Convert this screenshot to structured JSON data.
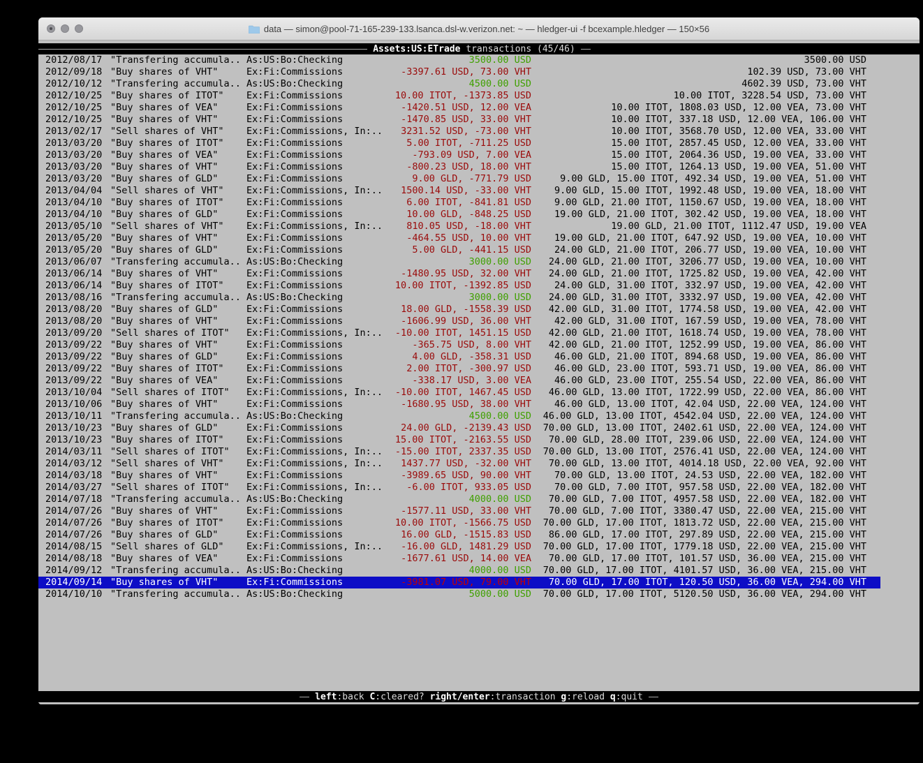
{
  "window": {
    "title": "data — simon@pool-71-165-239-133.lsanca.dsl-w.verizon.net: ~ — hledger-ui -f bcexample.hledger — 150×56",
    "buttons": [
      "close",
      "minimize",
      "zoom"
    ]
  },
  "colors": {
    "terminal_bg": "#c0c0c0",
    "bar_bg": "#000000",
    "selection_bg": "#0d0dc6",
    "negative_amount": "#9a0b0b",
    "positive_amount": "#3fa000",
    "selected_negative_amount": "#c40000"
  },
  "screen": {
    "account": "Assets:US:ETrade",
    "rest": "transactions (45/46)"
  },
  "key_bar": {
    "items": [
      {
        "key": "left",
        "desc": ":back"
      },
      {
        "key": "C",
        "desc": ":cleared?"
      },
      {
        "key": "right/enter",
        "desc": ":transaction"
      },
      {
        "key": "g",
        "desc": ":reload"
      },
      {
        "key": "q",
        "desc": ":quit"
      }
    ]
  },
  "selected_index": 44,
  "transactions": [
    {
      "date": "2012/08/17",
      "desc": "\"Transfering accumula..",
      "acct": "As:US:Bo:Checking",
      "chg": "3500.00 USD",
      "sign": "pos",
      "bal": "3500.00 USD"
    },
    {
      "date": "2012/09/18",
      "desc": "\"Buy shares of VHT\"",
      "acct": "Ex:Fi:Commissions",
      "chg": "-3397.61 USD, 73.00 VHT",
      "sign": "neg",
      "bal": "102.39 USD, 73.00 VHT"
    },
    {
      "date": "2012/10/12",
      "desc": "\"Transfering accumula..",
      "acct": "As:US:Bo:Checking",
      "chg": "4500.00 USD",
      "sign": "pos",
      "bal": "4602.39 USD, 73.00 VHT"
    },
    {
      "date": "2012/10/25",
      "desc": "\"Buy shares of ITOT\"",
      "acct": "Ex:Fi:Commissions",
      "chg": "10.00 ITOT, -1373.85 USD",
      "sign": "neg",
      "bal": "10.00 ITOT, 3228.54 USD, 73.00 VHT"
    },
    {
      "date": "2012/10/25",
      "desc": "\"Buy shares of VEA\"",
      "acct": "Ex:Fi:Commissions",
      "chg": "-1420.51 USD, 12.00 VEA",
      "sign": "neg",
      "bal": "10.00 ITOT, 1808.03 USD, 12.00 VEA, 73.00 VHT"
    },
    {
      "date": "2012/10/25",
      "desc": "\"Buy shares of VHT\"",
      "acct": "Ex:Fi:Commissions",
      "chg": "-1470.85 USD, 33.00 VHT",
      "sign": "neg",
      "bal": "10.00 ITOT, 337.18 USD, 12.00 VEA, 106.00 VHT"
    },
    {
      "date": "2013/02/17",
      "desc": "\"Sell shares of VHT\"",
      "acct": "Ex:Fi:Commissions, In:..",
      "chg": "3231.52 USD, -73.00 VHT",
      "sign": "neg",
      "bal": "10.00 ITOT, 3568.70 USD, 12.00 VEA, 33.00 VHT"
    },
    {
      "date": "2013/03/20",
      "desc": "\"Buy shares of ITOT\"",
      "acct": "Ex:Fi:Commissions",
      "chg": "5.00 ITOT, -711.25 USD",
      "sign": "neg",
      "bal": "15.00 ITOT, 2857.45 USD, 12.00 VEA, 33.00 VHT"
    },
    {
      "date": "2013/03/20",
      "desc": "\"Buy shares of VEA\"",
      "acct": "Ex:Fi:Commissions",
      "chg": "-793.09 USD, 7.00 VEA",
      "sign": "neg",
      "bal": "15.00 ITOT, 2064.36 USD, 19.00 VEA, 33.00 VHT"
    },
    {
      "date": "2013/03/20",
      "desc": "\"Buy shares of VHT\"",
      "acct": "Ex:Fi:Commissions",
      "chg": "-800.23 USD, 18.00 VHT",
      "sign": "neg",
      "bal": "15.00 ITOT, 1264.13 USD, 19.00 VEA, 51.00 VHT"
    },
    {
      "date": "2013/03/20",
      "desc": "\"Buy shares of GLD\"",
      "acct": "Ex:Fi:Commissions",
      "chg": "9.00 GLD, -771.79 USD",
      "sign": "neg",
      "bal": "9.00 GLD, 15.00 ITOT, 492.34 USD, 19.00 VEA, 51.00 VHT"
    },
    {
      "date": "2013/04/04",
      "desc": "\"Sell shares of VHT\"",
      "acct": "Ex:Fi:Commissions, In:..",
      "chg": "1500.14 USD, -33.00 VHT",
      "sign": "neg",
      "bal": "9.00 GLD, 15.00 ITOT, 1992.48 USD, 19.00 VEA, 18.00 VHT"
    },
    {
      "date": "2013/04/10",
      "desc": "\"Buy shares of ITOT\"",
      "acct": "Ex:Fi:Commissions",
      "chg": "6.00 ITOT, -841.81 USD",
      "sign": "neg",
      "bal": "9.00 GLD, 21.00 ITOT, 1150.67 USD, 19.00 VEA, 18.00 VHT"
    },
    {
      "date": "2013/04/10",
      "desc": "\"Buy shares of GLD\"",
      "acct": "Ex:Fi:Commissions",
      "chg": "10.00 GLD, -848.25 USD",
      "sign": "neg",
      "bal": "19.00 GLD, 21.00 ITOT, 302.42 USD, 19.00 VEA, 18.00 VHT"
    },
    {
      "date": "2013/05/10",
      "desc": "\"Sell shares of VHT\"",
      "acct": "Ex:Fi:Commissions, In:..",
      "chg": "810.05 USD, -18.00 VHT",
      "sign": "neg",
      "bal": "19.00 GLD, 21.00 ITOT, 1112.47 USD, 19.00 VEA"
    },
    {
      "date": "2013/05/20",
      "desc": "\"Buy shares of VHT\"",
      "acct": "Ex:Fi:Commissions",
      "chg": "-464.55 USD, 10.00 VHT",
      "sign": "neg",
      "bal": "19.00 GLD, 21.00 ITOT, 647.92 USD, 19.00 VEA, 10.00 VHT"
    },
    {
      "date": "2013/05/20",
      "desc": "\"Buy shares of GLD\"",
      "acct": "Ex:Fi:Commissions",
      "chg": "5.00 GLD, -441.15 USD",
      "sign": "neg",
      "bal": "24.00 GLD, 21.00 ITOT, 206.77 USD, 19.00 VEA, 10.00 VHT"
    },
    {
      "date": "2013/06/07",
      "desc": "\"Transfering accumula..",
      "acct": "As:US:Bo:Checking",
      "chg": "3000.00 USD",
      "sign": "pos",
      "bal": "24.00 GLD, 21.00 ITOT, 3206.77 USD, 19.00 VEA, 10.00 VHT"
    },
    {
      "date": "2013/06/14",
      "desc": "\"Buy shares of VHT\"",
      "acct": "Ex:Fi:Commissions",
      "chg": "-1480.95 USD, 32.00 VHT",
      "sign": "neg",
      "bal": "24.00 GLD, 21.00 ITOT, 1725.82 USD, 19.00 VEA, 42.00 VHT"
    },
    {
      "date": "2013/06/14",
      "desc": "\"Buy shares of ITOT\"",
      "acct": "Ex:Fi:Commissions",
      "chg": "10.00 ITOT, -1392.85 USD",
      "sign": "neg",
      "bal": "24.00 GLD, 31.00 ITOT, 332.97 USD, 19.00 VEA, 42.00 VHT"
    },
    {
      "date": "2013/08/16",
      "desc": "\"Transfering accumula..",
      "acct": "As:US:Bo:Checking",
      "chg": "3000.00 USD",
      "sign": "pos",
      "bal": "24.00 GLD, 31.00 ITOT, 3332.97 USD, 19.00 VEA, 42.00 VHT"
    },
    {
      "date": "2013/08/20",
      "desc": "\"Buy shares of GLD\"",
      "acct": "Ex:Fi:Commissions",
      "chg": "18.00 GLD, -1558.39 USD",
      "sign": "neg",
      "bal": "42.00 GLD, 31.00 ITOT, 1774.58 USD, 19.00 VEA, 42.00 VHT"
    },
    {
      "date": "2013/08/20",
      "desc": "\"Buy shares of VHT\"",
      "acct": "Ex:Fi:Commissions",
      "chg": "-1606.99 USD, 36.00 VHT",
      "sign": "neg",
      "bal": "42.00 GLD, 31.00 ITOT, 167.59 USD, 19.00 VEA, 78.00 VHT"
    },
    {
      "date": "2013/09/20",
      "desc": "\"Sell shares of ITOT\"",
      "acct": "Ex:Fi:Commissions, In:..",
      "chg": "-10.00 ITOT, 1451.15 USD",
      "sign": "neg",
      "bal": "42.00 GLD, 21.00 ITOT, 1618.74 USD, 19.00 VEA, 78.00 VHT"
    },
    {
      "date": "2013/09/22",
      "desc": "\"Buy shares of VHT\"",
      "acct": "Ex:Fi:Commissions",
      "chg": "-365.75 USD, 8.00 VHT",
      "sign": "neg",
      "bal": "42.00 GLD, 21.00 ITOT, 1252.99 USD, 19.00 VEA, 86.00 VHT"
    },
    {
      "date": "2013/09/22",
      "desc": "\"Buy shares of GLD\"",
      "acct": "Ex:Fi:Commissions",
      "chg": "4.00 GLD, -358.31 USD",
      "sign": "neg",
      "bal": "46.00 GLD, 21.00 ITOT, 894.68 USD, 19.00 VEA, 86.00 VHT"
    },
    {
      "date": "2013/09/22",
      "desc": "\"Buy shares of ITOT\"",
      "acct": "Ex:Fi:Commissions",
      "chg": "2.00 ITOT, -300.97 USD",
      "sign": "neg",
      "bal": "46.00 GLD, 23.00 ITOT, 593.71 USD, 19.00 VEA, 86.00 VHT"
    },
    {
      "date": "2013/09/22",
      "desc": "\"Buy shares of VEA\"",
      "acct": "Ex:Fi:Commissions",
      "chg": "-338.17 USD, 3.00 VEA",
      "sign": "neg",
      "bal": "46.00 GLD, 23.00 ITOT, 255.54 USD, 22.00 VEA, 86.00 VHT"
    },
    {
      "date": "2013/10/04",
      "desc": "\"Sell shares of ITOT\"",
      "acct": "Ex:Fi:Commissions, In:..",
      "chg": "-10.00 ITOT, 1467.45 USD",
      "sign": "neg",
      "bal": "46.00 GLD, 13.00 ITOT, 1722.99 USD, 22.00 VEA, 86.00 VHT"
    },
    {
      "date": "2013/10/06",
      "desc": "\"Buy shares of VHT\"",
      "acct": "Ex:Fi:Commissions",
      "chg": "-1680.95 USD, 38.00 VHT",
      "sign": "neg",
      "bal": "46.00 GLD, 13.00 ITOT, 42.04 USD, 22.00 VEA, 124.00 VHT"
    },
    {
      "date": "2013/10/11",
      "desc": "\"Transfering accumula..",
      "acct": "As:US:Bo:Checking",
      "chg": "4500.00 USD",
      "sign": "pos",
      "bal": "46.00 GLD, 13.00 ITOT, 4542.04 USD, 22.00 VEA, 124.00 VHT"
    },
    {
      "date": "2013/10/23",
      "desc": "\"Buy shares of GLD\"",
      "acct": "Ex:Fi:Commissions",
      "chg": "24.00 GLD, -2139.43 USD",
      "sign": "neg",
      "bal": "70.00 GLD, 13.00 ITOT, 2402.61 USD, 22.00 VEA, 124.00 VHT"
    },
    {
      "date": "2013/10/23",
      "desc": "\"Buy shares of ITOT\"",
      "acct": "Ex:Fi:Commissions",
      "chg": "15.00 ITOT, -2163.55 USD",
      "sign": "neg",
      "bal": "70.00 GLD, 28.00 ITOT, 239.06 USD, 22.00 VEA, 124.00 VHT"
    },
    {
      "date": "2014/03/11",
      "desc": "\"Sell shares of ITOT\"",
      "acct": "Ex:Fi:Commissions, In:..",
      "chg": "-15.00 ITOT, 2337.35 USD",
      "sign": "neg",
      "bal": "70.00 GLD, 13.00 ITOT, 2576.41 USD, 22.00 VEA, 124.00 VHT"
    },
    {
      "date": "2014/03/12",
      "desc": "\"Sell shares of VHT\"",
      "acct": "Ex:Fi:Commissions, In:..",
      "chg": "1437.77 USD, -32.00 VHT",
      "sign": "neg",
      "bal": "70.00 GLD, 13.00 ITOT, 4014.18 USD, 22.00 VEA, 92.00 VHT"
    },
    {
      "date": "2014/03/18",
      "desc": "\"Buy shares of VHT\"",
      "acct": "Ex:Fi:Commissions",
      "chg": "-3989.65 USD, 90.00 VHT",
      "sign": "neg",
      "bal": "70.00 GLD, 13.00 ITOT, 24.53 USD, 22.00 VEA, 182.00 VHT"
    },
    {
      "date": "2014/03/27",
      "desc": "\"Sell shares of ITOT\"",
      "acct": "Ex:Fi:Commissions, In:..",
      "chg": "-6.00 ITOT, 933.05 USD",
      "sign": "neg",
      "bal": "70.00 GLD, 7.00 ITOT, 957.58 USD, 22.00 VEA, 182.00 VHT"
    },
    {
      "date": "2014/07/18",
      "desc": "\"Transfering accumula..",
      "acct": "As:US:Bo:Checking",
      "chg": "4000.00 USD",
      "sign": "pos",
      "bal": "70.00 GLD, 7.00 ITOT, 4957.58 USD, 22.00 VEA, 182.00 VHT"
    },
    {
      "date": "2014/07/26",
      "desc": "\"Buy shares of VHT\"",
      "acct": "Ex:Fi:Commissions",
      "chg": "-1577.11 USD, 33.00 VHT",
      "sign": "neg",
      "bal": "70.00 GLD, 7.00 ITOT, 3380.47 USD, 22.00 VEA, 215.00 VHT"
    },
    {
      "date": "2014/07/26",
      "desc": "\"Buy shares of ITOT\"",
      "acct": "Ex:Fi:Commissions",
      "chg": "10.00 ITOT, -1566.75 USD",
      "sign": "neg",
      "bal": "70.00 GLD, 17.00 ITOT, 1813.72 USD, 22.00 VEA, 215.00 VHT"
    },
    {
      "date": "2014/07/26",
      "desc": "\"Buy shares of GLD\"",
      "acct": "Ex:Fi:Commissions",
      "chg": "16.00 GLD, -1515.83 USD",
      "sign": "neg",
      "bal": "86.00 GLD, 17.00 ITOT, 297.89 USD, 22.00 VEA, 215.00 VHT"
    },
    {
      "date": "2014/08/15",
      "desc": "\"Sell shares of GLD\"",
      "acct": "Ex:Fi:Commissions, In:..",
      "chg": "-16.00 GLD, 1481.29 USD",
      "sign": "neg",
      "bal": "70.00 GLD, 17.00 ITOT, 1779.18 USD, 22.00 VEA, 215.00 VHT"
    },
    {
      "date": "2014/08/18",
      "desc": "\"Buy shares of VEA\"",
      "acct": "Ex:Fi:Commissions",
      "chg": "-1677.61 USD, 14.00 VEA",
      "sign": "neg",
      "bal": "70.00 GLD, 17.00 ITOT, 101.57 USD, 36.00 VEA, 215.00 VHT"
    },
    {
      "date": "2014/09/12",
      "desc": "\"Transfering accumula..",
      "acct": "As:US:Bo:Checking",
      "chg": "4000.00 USD",
      "sign": "pos",
      "bal": "70.00 GLD, 17.00 ITOT, 4101.57 USD, 36.00 VEA, 215.00 VHT"
    },
    {
      "date": "2014/09/14",
      "desc": "\"Buy shares of VHT\"",
      "acct": "Ex:Fi:Commissions",
      "chg": "-3981.07 USD, 79.00 VHT",
      "sign": "neg",
      "bal": "70.00 GLD, 17.00 ITOT, 120.50 USD, 36.00 VEA, 294.00 VHT"
    },
    {
      "date": "2014/10/10",
      "desc": "\"Transfering accumula..",
      "acct": "As:US:Bo:Checking",
      "chg": "5000.00 USD",
      "sign": "pos",
      "bal": "70.00 GLD, 17.00 ITOT, 5120.50 USD, 36.00 VEA, 294.00 VHT"
    }
  ]
}
